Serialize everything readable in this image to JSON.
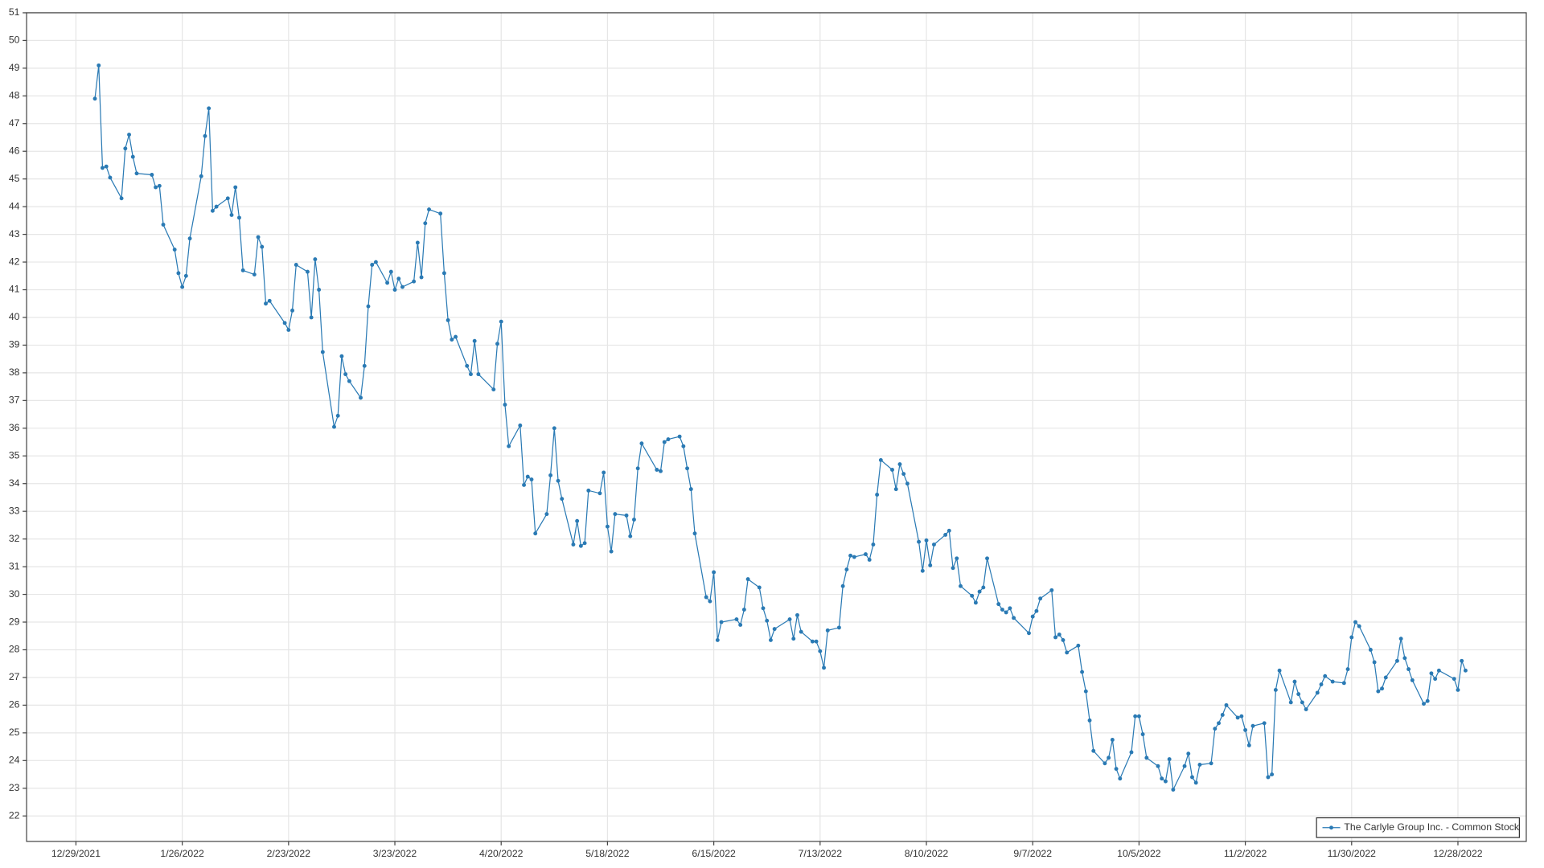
{
  "chart_data": {
    "type": "line",
    "grid": true,
    "legend": "lower right",
    "xlim": [
      "12/16/2021",
      "1/15/2023"
    ],
    "xticks": [
      "12/29/2021",
      "1/26/2022",
      "2/23/2022",
      "3/23/2022",
      "4/20/2022",
      "5/18/2022",
      "6/15/2022",
      "7/13/2022",
      "8/10/2022",
      "9/7/2022",
      "10/5/2022",
      "11/2/2022",
      "11/30/2022",
      "12/28/2022"
    ],
    "ylim": [
      21.08,
      51
    ],
    "yticks": [
      22,
      23,
      24,
      25,
      26,
      27,
      28,
      29,
      30,
      31,
      32,
      33,
      34,
      35,
      36,
      37,
      38,
      39,
      40,
      41,
      42,
      43,
      44,
      45,
      46,
      47,
      48,
      49,
      50,
      51
    ],
    "x": [
      "1/3/2022",
      "1/4/2022",
      "1/5/2022",
      "1/6/2022",
      "1/7/2022",
      "1/10/2022",
      "1/11/2022",
      "1/12/2022",
      "1/13/2022",
      "1/14/2022",
      "1/18/2022",
      "1/19/2022",
      "1/20/2022",
      "1/21/2022",
      "1/24/2022",
      "1/25/2022",
      "1/26/2022",
      "1/27/2022",
      "1/28/2022",
      "1/31/2022",
      "2/1/2022",
      "2/2/2022",
      "2/3/2022",
      "2/4/2022",
      "2/7/2022",
      "2/8/2022",
      "2/9/2022",
      "2/10/2022",
      "2/11/2022",
      "2/14/2022",
      "2/15/2022",
      "2/16/2022",
      "2/17/2022",
      "2/18/2022",
      "2/22/2022",
      "2/23/2022",
      "2/24/2022",
      "2/25/2022",
      "2/28/2022",
      "3/1/2022",
      "3/2/2022",
      "3/3/2022",
      "3/4/2022",
      "3/7/2022",
      "3/8/2022",
      "3/9/2022",
      "3/10/2022",
      "3/11/2022",
      "3/14/2022",
      "3/15/2022",
      "3/16/2022",
      "3/17/2022",
      "3/18/2022",
      "3/21/2022",
      "3/22/2022",
      "3/23/2022",
      "3/24/2022",
      "3/25/2022",
      "3/28/2022",
      "3/29/2022",
      "3/30/2022",
      "3/31/2022",
      "4/1/2022",
      "4/4/2022",
      "4/5/2022",
      "4/6/2022",
      "4/7/2022",
      "4/8/2022",
      "4/11/2022",
      "4/12/2022",
      "4/13/2022",
      "4/14/2022",
      "4/18/2022",
      "4/19/2022",
      "4/20/2022",
      "4/21/2022",
      "4/22/2022",
      "4/25/2022",
      "4/26/2022",
      "4/27/2022",
      "4/28/2022",
      "4/29/2022",
      "5/2/2022",
      "5/3/2022",
      "5/4/2022",
      "5/5/2022",
      "5/6/2022",
      "5/9/2022",
      "5/10/2022",
      "5/11/2022",
      "5/12/2022",
      "5/13/2022",
      "5/16/2022",
      "5/17/2022",
      "5/18/2022",
      "5/19/2022",
      "5/20/2022",
      "5/23/2022",
      "5/24/2022",
      "5/25/2022",
      "5/26/2022",
      "5/27/2022",
      "5/31/2022",
      "6/1/2022",
      "6/2/2022",
      "6/3/2022",
      "6/6/2022",
      "6/7/2022",
      "6/8/2022",
      "6/9/2022",
      "6/10/2022",
      "6/13/2022",
      "6/14/2022",
      "6/15/2022",
      "6/16/2022",
      "6/17/2022",
      "6/21/2022",
      "6/22/2022",
      "6/23/2022",
      "6/24/2022",
      "6/27/2022",
      "6/28/2022",
      "6/29/2022",
      "6/30/2022",
      "7/1/2022",
      "7/5/2022",
      "7/6/2022",
      "7/7/2022",
      "7/8/2022",
      "7/11/2022",
      "7/12/2022",
      "7/13/2022",
      "7/14/2022",
      "7/15/2022",
      "7/18/2022",
      "7/19/2022",
      "7/20/2022",
      "7/21/2022",
      "7/22/2022",
      "7/25/2022",
      "7/26/2022",
      "7/27/2022",
      "7/28/2022",
      "7/29/2022",
      "8/1/2022",
      "8/2/2022",
      "8/3/2022",
      "8/4/2022",
      "8/5/2022",
      "8/8/2022",
      "8/9/2022",
      "8/10/2022",
      "8/11/2022",
      "8/12/2022",
      "8/15/2022",
      "8/16/2022",
      "8/17/2022",
      "8/18/2022",
      "8/19/2022",
      "8/22/2022",
      "8/23/2022",
      "8/24/2022",
      "8/25/2022",
      "8/26/2022",
      "8/29/2022",
      "8/30/2022",
      "8/31/2022",
      "9/1/2022",
      "9/2/2022",
      "9/6/2022",
      "9/7/2022",
      "9/8/2022",
      "9/9/2022",
      "9/12/2022",
      "9/13/2022",
      "9/14/2022",
      "9/15/2022",
      "9/16/2022",
      "9/19/2022",
      "9/20/2022",
      "9/21/2022",
      "9/22/2022",
      "9/23/2022",
      "9/26/2022",
      "9/27/2022",
      "9/28/2022",
      "9/29/2022",
      "9/30/2022",
      "10/3/2022",
      "10/4/2022",
      "10/5/2022",
      "10/6/2022",
      "10/7/2022",
      "10/10/2022",
      "10/11/2022",
      "10/12/2022",
      "10/13/2022",
      "10/14/2022",
      "10/17/2022",
      "10/18/2022",
      "10/19/2022",
      "10/20/2022",
      "10/21/2022",
      "10/24/2022",
      "10/25/2022",
      "10/26/2022",
      "10/27/2022",
      "10/28/2022",
      "10/31/2022",
      "11/1/2022",
      "11/2/2022",
      "11/3/2022",
      "11/4/2022",
      "11/7/2022",
      "11/8/2022",
      "11/9/2022",
      "11/10/2022",
      "11/11/2022",
      "11/14/2022",
      "11/15/2022",
      "11/16/2022",
      "11/17/2022",
      "11/18/2022",
      "11/21/2022",
      "11/22/2022",
      "11/23/2022",
      "11/25/2022",
      "11/28/2022",
      "11/29/2022",
      "11/30/2022",
      "12/1/2022",
      "12/2/2022",
      "12/5/2022",
      "12/6/2022",
      "12/7/2022",
      "12/8/2022",
      "12/9/2022",
      "12/12/2022",
      "12/13/2022",
      "12/14/2022",
      "12/15/2022",
      "12/16/2022",
      "12/19/2022",
      "12/20/2022",
      "12/21/2022",
      "12/22/2022",
      "12/23/2022",
      "12/27/2022",
      "12/28/2022",
      "12/29/2022",
      "12/30/2022"
    ],
    "series": [
      {
        "name": "The Carlyle Group Inc. - Common Stock",
        "color": "#2a7ab4",
        "values": [
          47.9,
          49.1,
          45.4,
          45.45,
          45.05,
          44.3,
          46.1,
          46.6,
          45.8,
          45.2,
          45.15,
          44.7,
          44.75,
          43.35,
          42.45,
          41.6,
          41.1,
          41.5,
          42.85,
          45.1,
          46.55,
          47.55,
          43.85,
          44.0,
          44.3,
          43.7,
          44.7,
          43.6,
          41.7,
          41.55,
          42.9,
          42.55,
          40.5,
          40.6,
          39.8,
          39.55,
          40.25,
          41.9,
          41.65,
          40.0,
          42.1,
          41.0,
          38.75,
          36.05,
          36.45,
          38.6,
          37.95,
          37.7,
          37.1,
          38.25,
          40.4,
          41.9,
          42.0,
          41.25,
          41.65,
          41.0,
          41.4,
          41.1,
          41.3,
          42.7,
          41.45,
          43.4,
          43.9,
          43.75,
          41.6,
          39.9,
          39.2,
          39.3,
          38.25,
          37.95,
          39.15,
          37.95,
          37.4,
          39.05,
          39.85,
          36.85,
          35.35,
          36.1,
          33.95,
          34.25,
          34.15,
          32.2,
          32.9,
          34.3,
          36.0,
          34.1,
          33.45,
          31.8,
          32.65,
          31.75,
          31.85,
          33.75,
          33.65,
          34.4,
          32.45,
          31.55,
          32.9,
          32.85,
          32.1,
          32.7,
          34.55,
          35.45,
          34.5,
          34.45,
          35.5,
          35.6,
          35.7,
          35.35,
          34.55,
          33.8,
          32.2,
          29.9,
          29.75,
          30.8,
          28.35,
          29.0,
          29.1,
          28.9,
          29.45,
          30.55,
          30.25,
          29.5,
          29.05,
          28.35,
          28.75,
          29.1,
          28.4,
          29.25,
          28.65,
          28.3,
          28.3,
          27.95,
          27.35,
          28.7,
          28.8,
          30.3,
          30.9,
          31.4,
          31.35,
          31.45,
          31.25,
          31.8,
          33.6,
          34.85,
          34.5,
          33.8,
          34.7,
          34.35,
          34.0,
          31.9,
          30.85,
          31.95,
          31.05,
          31.8,
          32.15,
          32.3,
          30.95,
          31.3,
          30.3,
          29.95,
          29.7,
          30.1,
          30.25,
          31.3,
          29.65,
          29.45,
          29.35,
          29.5,
          29.15,
          28.6,
          29.2,
          29.4,
          29.85,
          30.15,
          28.45,
          28.55,
          28.35,
          27.9,
          28.15,
          27.2,
          26.5,
          25.45,
          24.35,
          23.9,
          24.1,
          24.75,
          23.7,
          23.35,
          24.3,
          25.6,
          25.6,
          24.95,
          24.1,
          23.8,
          23.35,
          23.25,
          24.05,
          22.95,
          23.8,
          24.25,
          23.4,
          23.2,
          23.85,
          23.9,
          25.15,
          25.35,
          25.65,
          26.0,
          25.55,
          25.6,
          25.1,
          24.55,
          25.25,
          25.35,
          23.4,
          23.5,
          26.55,
          27.25,
          26.1,
          26.85,
          26.4,
          26.1,
          25.85,
          26.45,
          26.75,
          27.05,
          26.85,
          26.8,
          27.3,
          28.45,
          29.0,
          28.85,
          28.0,
          27.55,
          26.5,
          26.6,
          27.0,
          27.6,
          28.4,
          27.7,
          27.3,
          26.9,
          26.05,
          26.15,
          27.15,
          26.95,
          27.25,
          26.95,
          26.55,
          27.6,
          27.25
        ]
      }
    ]
  }
}
